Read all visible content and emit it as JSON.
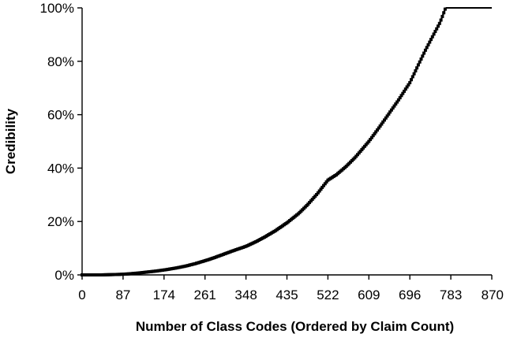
{
  "chart_data": {
    "type": "line",
    "title": "",
    "xlabel": "Number of Class Codes (Ordered by Claim Count)",
    "ylabel": "Credibility",
    "xlim": [
      0,
      870
    ],
    "ylim": [
      0,
      1
    ],
    "x_ticks": [
      0,
      87,
      174,
      261,
      348,
      435,
      522,
      609,
      696,
      783,
      870
    ],
    "x_tick_labels": [
      "0",
      "87",
      "174",
      "261",
      "348",
      "435",
      "522",
      "609",
      "696",
      "783",
      "870"
    ],
    "y_ticks": [
      0,
      0.2,
      0.4,
      0.6,
      0.8,
      1.0
    ],
    "y_tick_labels": [
      "0%",
      "20%",
      "40%",
      "60%",
      "80%",
      "100%"
    ],
    "grid": false,
    "legend": "none",
    "marker": "square",
    "color": "#000000",
    "series": [
      {
        "x": [
          0,
          20,
          40,
          60,
          80,
          100,
          120,
          140,
          160,
          180,
          200,
          220,
          240,
          261,
          280,
          300,
          320,
          348,
          370,
          390,
          410,
          435,
          460,
          480,
          500,
          522,
          540,
          560,
          580,
          609,
          630,
          650,
          670,
          696,
          715,
          730,
          745,
          760,
          772,
          785,
          800,
          820,
          840,
          870
        ],
        "y": [
          0.0,
          0.0,
          0.0,
          0.001,
          0.002,
          0.004,
          0.007,
          0.011,
          0.015,
          0.02,
          0.026,
          0.033,
          0.042,
          0.053,
          0.064,
          0.077,
          0.09,
          0.107,
          0.125,
          0.144,
          0.165,
          0.195,
          0.23,
          0.265,
          0.305,
          0.355,
          0.375,
          0.405,
          0.44,
          0.5,
          0.55,
          0.6,
          0.65,
          0.72,
          0.79,
          0.845,
          0.895,
          0.945,
          1.0,
          1.0,
          1.0,
          1.0,
          1.0,
          1.0
        ]
      }
    ]
  }
}
